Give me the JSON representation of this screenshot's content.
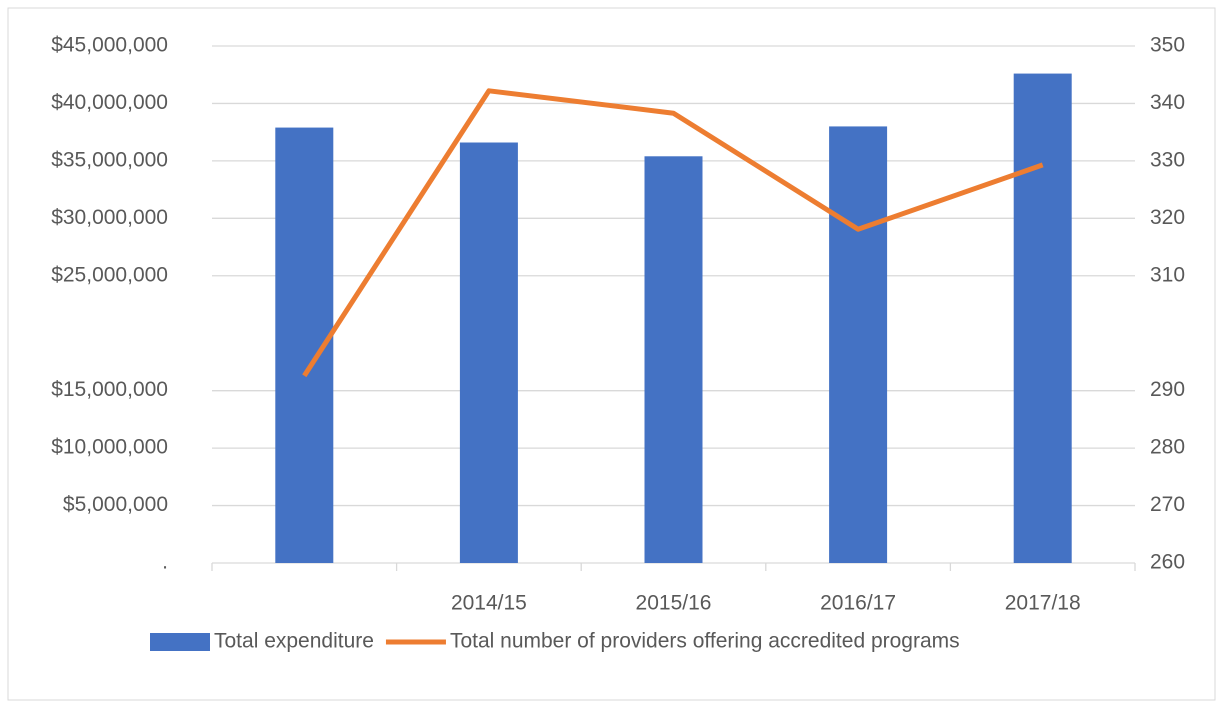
{
  "chart_data": {
    "type": "bar",
    "categories": [
      null,
      "2014/15",
      "2015/16",
      "2016/17",
      "2017/18"
    ],
    "series": [
      {
        "name": "Total expenditure",
        "type": "bar",
        "color": "#4472c4",
        "values": [
          37900000,
          36600000,
          35400000,
          38000000,
          42600000
        ]
      },
      {
        "name": "Total number of providers offering accredited programs",
        "type": "line",
        "axis": "y2",
        "color": "#ed7d31",
        "values": [
          292.6,
          342.2,
          338.3,
          318.1,
          329.3
        ]
      }
    ],
    "ylim": [
      0,
      45000000
    ],
    "yticks": [
      {
        "value": 0,
        "label": "."
      },
      {
        "value": 5000000,
        "label": "$5,000,000"
      },
      {
        "value": 10000000,
        "label": "$10,000,000"
      },
      {
        "value": 15000000,
        "label": "$15,000,000"
      },
      {
        "value": 25000000,
        "label": "$25,000,000"
      },
      {
        "value": 30000000,
        "label": "$30,000,000"
      },
      {
        "value": 35000000,
        "label": "$35,000,000"
      },
      {
        "value": 40000000,
        "label": "$40,000,000"
      },
      {
        "value": 45000000,
        "label": "$45,000,000"
      }
    ],
    "y2lim": [
      260,
      350
    ],
    "y2ticks": [
      260,
      270,
      280,
      290,
      310,
      320,
      330,
      340,
      350
    ],
    "grid": true,
    "legend": "bottom"
  }
}
